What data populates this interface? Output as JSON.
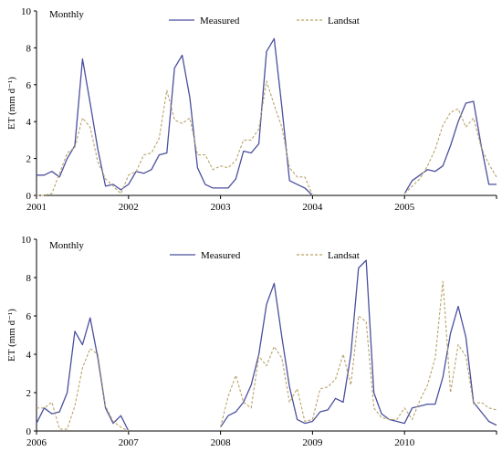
{
  "colors": {
    "measured": "#4b4f9e",
    "landsat": "#b9a36b",
    "axis": "#000000"
  },
  "chart_data": [
    {
      "type": "line",
      "annotation": "Monthly",
      "ylabel": "ET (mm d⁻¹)",
      "xlabel": "",
      "xlim": [
        2001,
        2006
      ],
      "ylim": [
        0,
        10
      ],
      "xticks": [
        "2001",
        "2002",
        "2003",
        "2004",
        "2005"
      ],
      "yticks": [
        "0",
        "2",
        "4",
        "6",
        "8",
        "10"
      ],
      "grid": false,
      "legend": "top",
      "series": [
        {
          "name": "Measured",
          "style": "solid",
          "segments": [
            [
              [
                2001.0,
                1.1
              ],
              [
                2001.083,
                1.1
              ],
              [
                2001.167,
                1.3
              ],
              [
                2001.25,
                1.0
              ],
              [
                2001.333,
                2.0
              ],
              [
                2001.417,
                2.7
              ],
              [
                2001.5,
                7.4
              ],
              [
                2001.583,
                5.0
              ],
              [
                2001.667,
                2.5
              ],
              [
                2001.75,
                0.5
              ],
              [
                2001.833,
                0.6
              ],
              [
                2001.917,
                0.3
              ],
              [
                2002.0,
                0.6
              ],
              [
                2002.083,
                1.3
              ],
              [
                2002.167,
                1.2
              ],
              [
                2002.25,
                1.4
              ],
              [
                2002.333,
                2.2
              ],
              [
                2002.417,
                2.3
              ],
              [
                2002.5,
                6.9
              ],
              [
                2002.583,
                7.6
              ],
              [
                2002.667,
                5.3
              ],
              [
                2002.75,
                1.5
              ],
              [
                2002.833,
                0.6
              ],
              [
                2002.917,
                0.4
              ],
              [
                2003.0,
                0.4
              ],
              [
                2003.083,
                0.4
              ],
              [
                2003.167,
                0.9
              ],
              [
                2003.25,
                2.4
              ],
              [
                2003.333,
                2.3
              ],
              [
                2003.417,
                2.8
              ],
              [
                2003.5,
                7.8
              ],
              [
                2003.583,
                8.5
              ],
              [
                2003.667,
                4.8
              ],
              [
                2003.75,
                0.8
              ],
              [
                2003.833,
                0.6
              ],
              [
                2003.917,
                0.4
              ],
              [
                2004.0,
                0.0
              ]
            ],
            [
              [
                2005.0,
                0.1
              ],
              [
                2005.083,
                0.8
              ],
              [
                2005.167,
                1.1
              ],
              [
                2005.25,
                1.4
              ],
              [
                2005.333,
                1.3
              ],
              [
                2005.417,
                1.6
              ],
              [
                2005.5,
                2.7
              ],
              [
                2005.583,
                4.0
              ],
              [
                2005.667,
                5.0
              ],
              [
                2005.75,
                5.1
              ],
              [
                2005.833,
                2.7
              ],
              [
                2005.917,
                0.6
              ],
              [
                2006.0,
                0.6
              ]
            ]
          ]
        },
        {
          "name": "Landsat",
          "style": "dashed",
          "segments": [
            [
              [
                2001.0,
                0.0
              ],
              [
                2001.083,
                0.0
              ],
              [
                2001.167,
                0.1
              ],
              [
                2001.25,
                1.2
              ],
              [
                2001.333,
                2.3
              ],
              [
                2001.417,
                2.6
              ],
              [
                2001.5,
                4.2
              ],
              [
                2001.583,
                3.7
              ],
              [
                2001.667,
                1.8
              ],
              [
                2001.75,
                0.9
              ],
              [
                2001.833,
                0.5
              ],
              [
                2001.917,
                0.1
              ],
              [
                2002.0,
                1.1
              ],
              [
                2002.083,
                1.3
              ],
              [
                2002.167,
                2.2
              ],
              [
                2002.25,
                2.3
              ],
              [
                2002.333,
                3.1
              ],
              [
                2002.417,
                5.7
              ],
              [
                2002.5,
                4.1
              ],
              [
                2002.583,
                3.9
              ],
              [
                2002.667,
                4.2
              ],
              [
                2002.75,
                2.2
              ],
              [
                2002.833,
                2.2
              ],
              [
                2002.917,
                1.4
              ],
              [
                2003.0,
                1.6
              ],
              [
                2003.083,
                1.5
              ],
              [
                2003.167,
                1.9
              ],
              [
                2003.25,
                3.0
              ],
              [
                2003.333,
                3.0
              ],
              [
                2003.417,
                3.6
              ],
              [
                2003.5,
                6.2
              ],
              [
                2003.583,
                4.9
              ],
              [
                2003.667,
                3.7
              ],
              [
                2003.75,
                1.5
              ],
              [
                2003.833,
                1.0
              ],
              [
                2003.917,
                1.0
              ],
              [
                2004.0,
                0.0
              ]
            ],
            [
              [
                2005.0,
                0.1
              ],
              [
                2005.083,
                0.5
              ],
              [
                2005.167,
                0.9
              ],
              [
                2005.25,
                1.6
              ],
              [
                2005.333,
                2.5
              ],
              [
                2005.417,
                3.8
              ],
              [
                2005.5,
                4.5
              ],
              [
                2005.583,
                4.7
              ],
              [
                2005.667,
                3.7
              ],
              [
                2005.75,
                4.2
              ],
              [
                2005.833,
                2.6
              ],
              [
                2005.917,
                1.7
              ],
              [
                2006.0,
                1.0
              ]
            ]
          ]
        }
      ]
    },
    {
      "type": "line",
      "annotation": "Monthly",
      "ylabel": "ET (mm d⁻¹)",
      "xlabel": "",
      "xlim": [
        2006,
        2011
      ],
      "ylim": [
        0,
        10
      ],
      "xticks": [
        "2006",
        "2007",
        "2008",
        "2009",
        "2010"
      ],
      "yticks": [
        "0",
        "2",
        "4",
        "6",
        "8",
        "10"
      ],
      "grid": false,
      "legend": "top",
      "series": [
        {
          "name": "Measured",
          "style": "solid",
          "segments": [
            [
              [
                2006.0,
                0.4
              ],
              [
                2006.083,
                1.2
              ],
              [
                2006.167,
                0.9
              ],
              [
                2006.25,
                1.0
              ],
              [
                2006.333,
                2.0
              ],
              [
                2006.417,
                5.2
              ],
              [
                2006.5,
                4.5
              ],
              [
                2006.583,
                5.9
              ],
              [
                2006.667,
                3.8
              ],
              [
                2006.75,
                1.2
              ],
              [
                2006.833,
                0.4
              ],
              [
                2006.917,
                0.8
              ],
              [
                2007.0,
                0.0
              ]
            ],
            [
              [
                2008.0,
                0.2
              ],
              [
                2008.083,
                0.8
              ],
              [
                2008.167,
                1.0
              ],
              [
                2008.25,
                1.5
              ],
              [
                2008.333,
                2.4
              ],
              [
                2008.417,
                4.0
              ],
              [
                2008.5,
                6.6
              ],
              [
                2008.583,
                7.7
              ],
              [
                2008.667,
                4.9
              ],
              [
                2008.75,
                2.3
              ],
              [
                2008.833,
                0.6
              ],
              [
                2008.917,
                0.4
              ],
              [
                2009.0,
                0.5
              ],
              [
                2009.083,
                1.0
              ],
              [
                2009.167,
                1.1
              ],
              [
                2009.25,
                1.7
              ],
              [
                2009.333,
                1.5
              ],
              [
                2009.417,
                4.0
              ],
              [
                2009.5,
                8.5
              ],
              [
                2009.583,
                8.9
              ],
              [
                2009.667,
                2.0
              ],
              [
                2009.75,
                0.9
              ],
              [
                2009.833,
                0.6
              ],
              [
                2009.917,
                0.5
              ],
              [
                2010.0,
                0.4
              ],
              [
                2010.083,
                1.2
              ],
              [
                2010.167,
                1.3
              ],
              [
                2010.25,
                1.4
              ],
              [
                2010.333,
                1.4
              ],
              [
                2010.417,
                2.8
              ],
              [
                2010.5,
                5.1
              ],
              [
                2010.583,
                6.5
              ],
              [
                2010.667,
                4.9
              ],
              [
                2010.75,
                1.5
              ],
              [
                2010.833,
                1.0
              ],
              [
                2010.917,
                0.5
              ],
              [
                2011.0,
                0.3
              ]
            ]
          ]
        },
        {
          "name": "Landsat",
          "style": "dashed",
          "segments": [
            [
              [
                2006.0,
                1.2
              ],
              [
                2006.083,
                1.2
              ],
              [
                2006.167,
                1.5
              ],
              [
                2006.25,
                0.1
              ],
              [
                2006.333,
                0.1
              ],
              [
                2006.417,
                1.3
              ],
              [
                2006.5,
                3.3
              ],
              [
                2006.583,
                4.3
              ],
              [
                2006.667,
                4.0
              ],
              [
                2006.75,
                1.3
              ],
              [
                2006.833,
                0.5
              ],
              [
                2006.917,
                0.2
              ],
              [
                2007.0,
                0.0
              ]
            ],
            [
              [
                2008.0,
                0.2
              ],
              [
                2008.083,
                1.8
              ],
              [
                2008.167,
                2.9
              ],
              [
                2008.25,
                1.5
              ],
              [
                2008.333,
                1.2
              ],
              [
                2008.417,
                3.9
              ],
              [
                2008.5,
                3.4
              ],
              [
                2008.583,
                4.4
              ],
              [
                2008.667,
                3.8
              ],
              [
                2008.75,
                1.5
              ],
              [
                2008.833,
                2.2
              ],
              [
                2008.917,
                0.5
              ],
              [
                2009.0,
                0.6
              ],
              [
                2009.083,
                2.2
              ],
              [
                2009.167,
                2.3
              ],
              [
                2009.25,
                2.7
              ],
              [
                2009.333,
                4.0
              ],
              [
                2009.417,
                2.4
              ],
              [
                2009.5,
                6.0
              ],
              [
                2009.583,
                5.7
              ],
              [
                2009.667,
                1.2
              ],
              [
                2009.75,
                0.7
              ],
              [
                2009.833,
                0.6
              ],
              [
                2009.917,
                0.6
              ],
              [
                2010.0,
                1.2
              ],
              [
                2010.083,
                0.6
              ],
              [
                2010.167,
                1.6
              ],
              [
                2010.25,
                2.4
              ],
              [
                2010.333,
                3.8
              ],
              [
                2010.417,
                7.8
              ],
              [
                2010.5,
                2.0
              ],
              [
                2010.583,
                4.5
              ],
              [
                2010.667,
                3.9
              ],
              [
                2010.75,
                1.4
              ],
              [
                2010.833,
                1.5
              ],
              [
                2010.917,
                1.2
              ],
              [
                2011.0,
                1.1
              ]
            ]
          ]
        }
      ]
    }
  ]
}
